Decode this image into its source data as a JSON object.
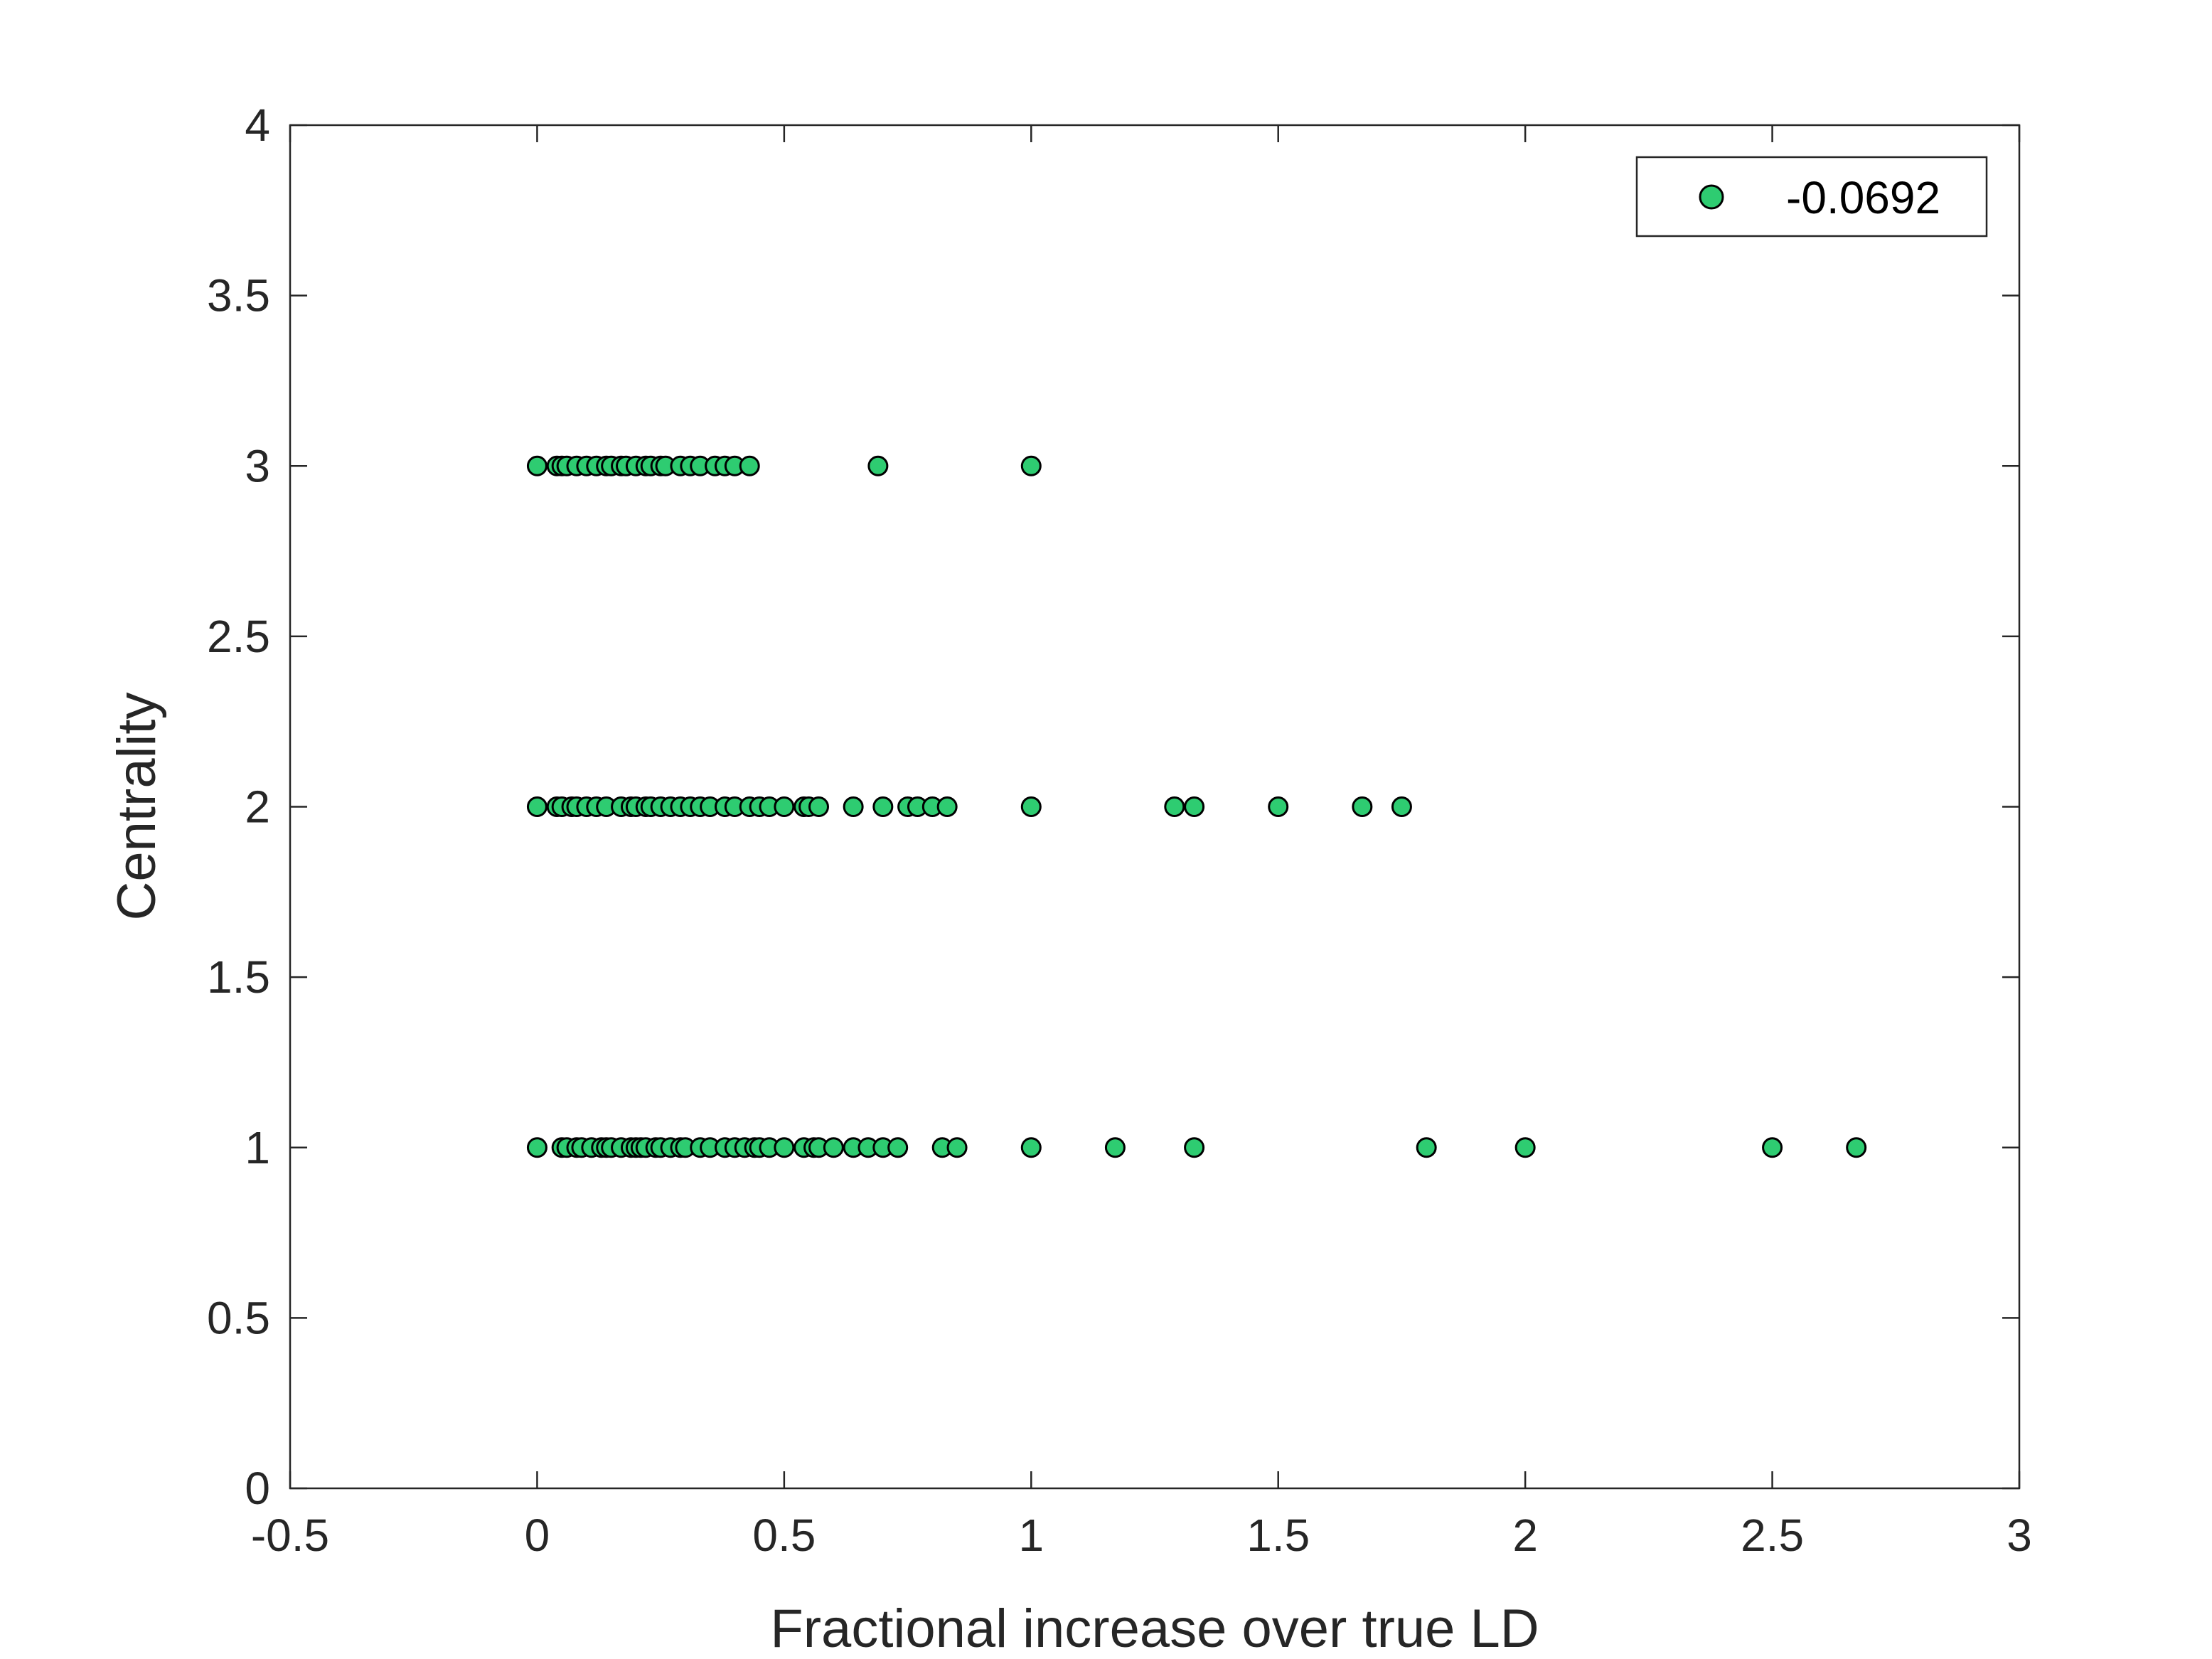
{
  "chart_data": {
    "type": "scatter",
    "title": "",
    "xlabel": "Fractional increase over true LD",
    "ylabel": "Centrality",
    "xlim": [
      -0.5,
      3
    ],
    "ylim": [
      0,
      4
    ],
    "xticks": [
      -0.5,
      0,
      0.5,
      1,
      1.5,
      2,
      2.5,
      3
    ],
    "xtick_labels": [
      "-0.5",
      "0",
      "0.5",
      "1",
      "1.5",
      "2",
      "2.5",
      "3"
    ],
    "yticks": [
      0,
      0.5,
      1,
      1.5,
      2,
      2.5,
      3,
      3.5,
      4
    ],
    "ytick_labels": [
      "0",
      "0.5",
      "1",
      "1.5",
      "2",
      "2.5",
      "3",
      "3.5",
      "4"
    ],
    "grid": false,
    "legend_position": "top-right",
    "marker_color": "#2ecc71",
    "marker_edge_color": "#000000",
    "series": [
      {
        "name": "-0.0692",
        "points": [
          [
            0,
            3
          ],
          [
            0.04,
            3
          ],
          [
            0.05,
            3
          ],
          [
            0.06,
            3
          ],
          [
            0.08,
            3
          ],
          [
            0.1,
            3
          ],
          [
            0.12,
            3
          ],
          [
            0.14,
            3
          ],
          [
            0.15,
            3
          ],
          [
            0.17,
            3
          ],
          [
            0.18,
            3
          ],
          [
            0.2,
            3
          ],
          [
            0.22,
            3
          ],
          [
            0.23,
            3
          ],
          [
            0.25,
            3
          ],
          [
            0.26,
            3
          ],
          [
            0.29,
            3
          ],
          [
            0.31,
            3
          ],
          [
            0.33,
            3
          ],
          [
            0.36,
            3
          ],
          [
            0.38,
            3
          ],
          [
            0.4,
            3
          ],
          [
            0.43,
            3
          ],
          [
            0.69,
            3
          ],
          [
            1,
            3
          ],
          [
            0,
            2
          ],
          [
            0.04,
            2
          ],
          [
            0.05,
            2
          ],
          [
            0.07,
            2
          ],
          [
            0.08,
            2
          ],
          [
            0.1,
            2
          ],
          [
            0.12,
            2
          ],
          [
            0.14,
            2
          ],
          [
            0.17,
            2
          ],
          [
            0.19,
            2
          ],
          [
            0.2,
            2
          ],
          [
            0.22,
            2
          ],
          [
            0.23,
            2
          ],
          [
            0.25,
            2
          ],
          [
            0.27,
            2
          ],
          [
            0.29,
            2
          ],
          [
            0.31,
            2
          ],
          [
            0.33,
            2
          ],
          [
            0.35,
            2
          ],
          [
            0.38,
            2
          ],
          [
            0.4,
            2
          ],
          [
            0.43,
            2
          ],
          [
            0.45,
            2
          ],
          [
            0.47,
            2
          ],
          [
            0.5,
            2
          ],
          [
            0.54,
            2
          ],
          [
            0.55,
            2
          ],
          [
            0.57,
            2
          ],
          [
            0.64,
            2
          ],
          [
            0.7,
            2
          ],
          [
            0.75,
            2
          ],
          [
            0.77,
            2
          ],
          [
            0.8,
            2
          ],
          [
            0.83,
            2
          ],
          [
            1,
            2
          ],
          [
            1.29,
            2
          ],
          [
            1.33,
            2
          ],
          [
            1.5,
            2
          ],
          [
            1.67,
            2
          ],
          [
            1.75,
            2
          ],
          [
            0,
            1
          ],
          [
            0.05,
            1
          ],
          [
            0.06,
            1
          ],
          [
            0.08,
            1
          ],
          [
            0.09,
            1
          ],
          [
            0.11,
            1
          ],
          [
            0.13,
            1
          ],
          [
            0.14,
            1
          ],
          [
            0.15,
            1
          ],
          [
            0.17,
            1
          ],
          [
            0.19,
            1
          ],
          [
            0.2,
            1
          ],
          [
            0.21,
            1
          ],
          [
            0.22,
            1
          ],
          [
            0.24,
            1
          ],
          [
            0.25,
            1
          ],
          [
            0.27,
            1
          ],
          [
            0.29,
            1
          ],
          [
            0.3,
            1
          ],
          [
            0.33,
            1
          ],
          [
            0.35,
            1
          ],
          [
            0.38,
            1
          ],
          [
            0.4,
            1
          ],
          [
            0.42,
            1
          ],
          [
            0.44,
            1
          ],
          [
            0.45,
            1
          ],
          [
            0.47,
            1
          ],
          [
            0.5,
            1
          ],
          [
            0.54,
            1
          ],
          [
            0.56,
            1
          ],
          [
            0.57,
            1
          ],
          [
            0.6,
            1
          ],
          [
            0.64,
            1
          ],
          [
            0.67,
            1
          ],
          [
            0.7,
            1
          ],
          [
            0.73,
            1
          ],
          [
            0.82,
            1
          ],
          [
            0.85,
            1
          ],
          [
            1,
            1
          ],
          [
            1.17,
            1
          ],
          [
            1.33,
            1
          ],
          [
            1.8,
            1
          ],
          [
            2,
            1
          ],
          [
            2.5,
            1
          ],
          [
            2.67,
            1
          ]
        ]
      }
    ]
  }
}
